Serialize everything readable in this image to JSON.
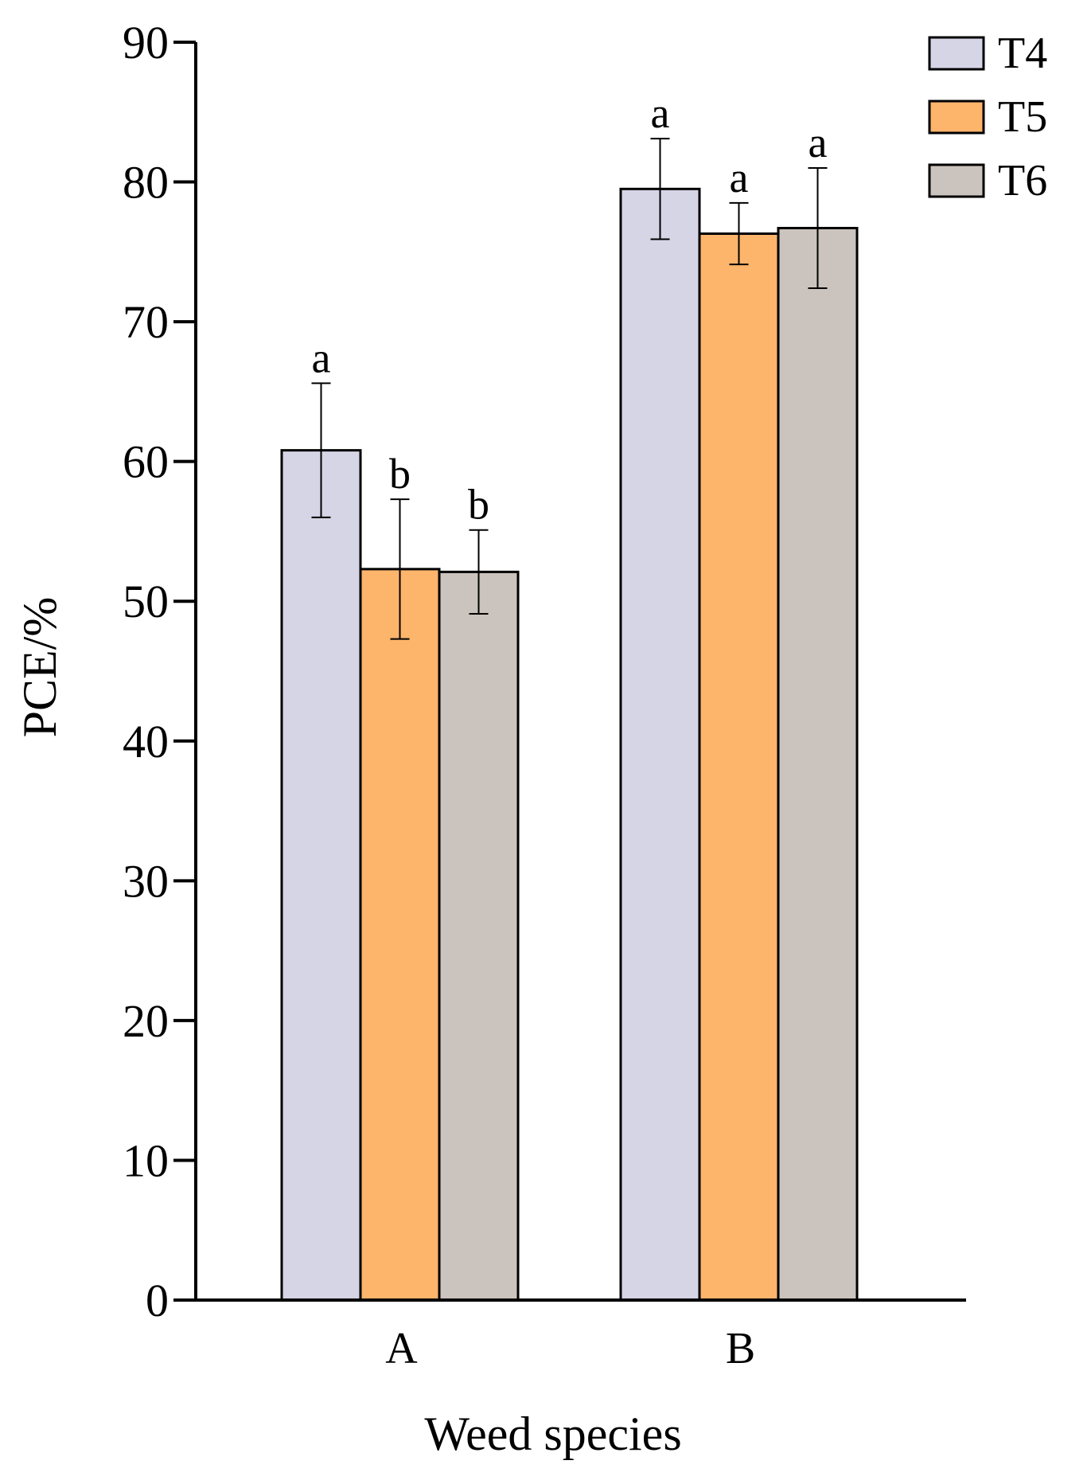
{
  "chart_data": {
    "type": "bar",
    "categories": [
      "A",
      "B"
    ],
    "series": [
      {
        "name": "T4",
        "color": "#d6d5e6",
        "values": [
          60.8,
          79.5
        ],
        "errors": [
          4.8,
          3.6
        ],
        "significance": [
          "a",
          "a"
        ]
      },
      {
        "name": "T5",
        "color": "#fdb46b",
        "values": [
          52.3,
          76.3
        ],
        "errors": [
          5.0,
          2.2
        ],
        "significance": [
          "b",
          "a"
        ]
      },
      {
        "name": "T6",
        "color": "#cbc3bd",
        "values": [
          52.1,
          76.7
        ],
        "errors": [
          3.0,
          4.3
        ],
        "significance": [
          "b",
          "a"
        ]
      }
    ],
    "xlabel": "Weed species",
    "ylabel": "PCE/%",
    "ylim": [
      0,
      90
    ],
    "yticks": [
      0,
      10,
      20,
      30,
      40,
      50,
      60,
      70,
      80,
      90
    ],
    "grid": false,
    "legend_position": "top-right"
  }
}
